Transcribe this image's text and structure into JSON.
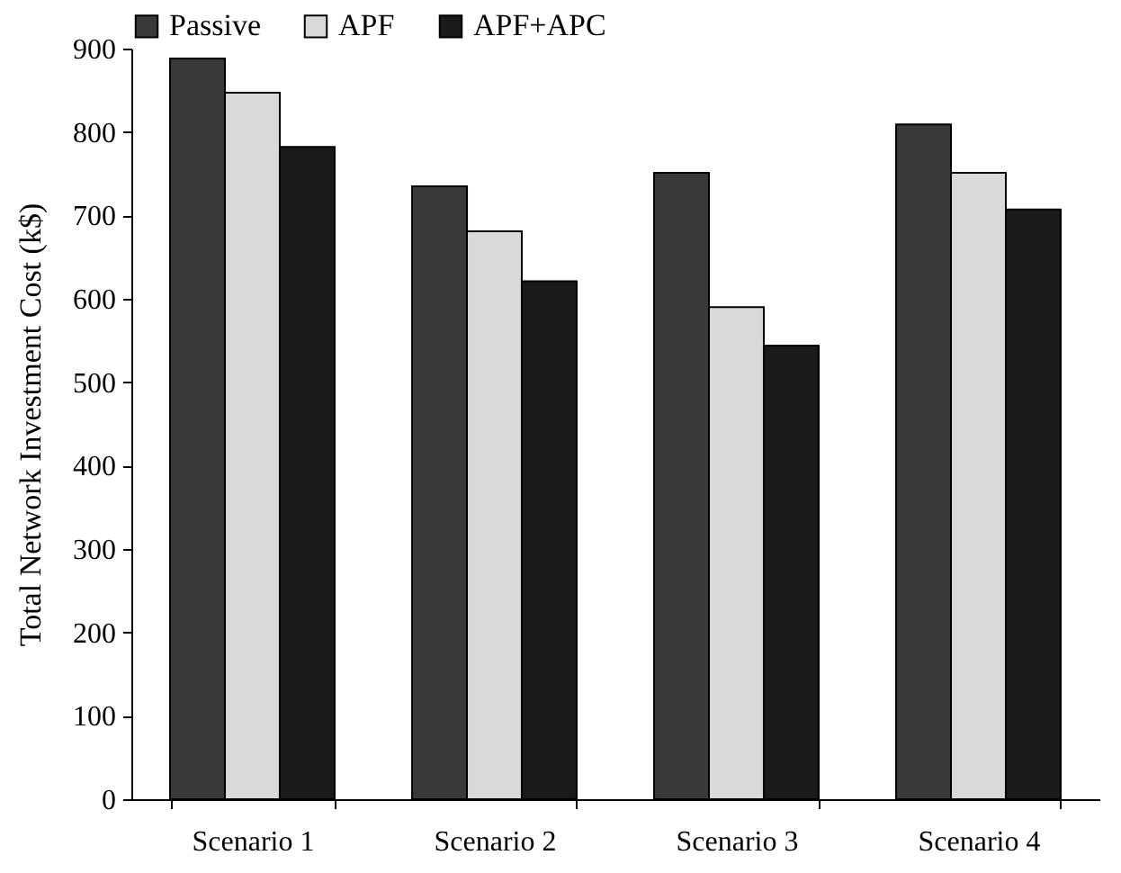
{
  "chart_data": {
    "type": "bar",
    "ylabel": "Total Network Investment Cost (k$)",
    "categories": [
      "Scenario 1",
      "Scenario 2",
      "Scenario 3",
      "Scenario 4"
    ],
    "series": [
      {
        "name": "Passive",
        "color": "#3a3a3a",
        "values": [
          888,
          735,
          751,
          809
        ]
      },
      {
        "name": "APF",
        "color": "#d9d9d9",
        "values": [
          847,
          681,
          590,
          751
        ]
      },
      {
        "name": "APF+APC",
        "color": "#1a1a1a",
        "values": [
          782,
          621,
          544,
          707
        ]
      }
    ],
    "ylim": [
      0,
      900
    ],
    "yticks": [
      0,
      100,
      200,
      300,
      400,
      500,
      600,
      700,
      800,
      900
    ],
    "grid": false,
    "legend": "top"
  }
}
